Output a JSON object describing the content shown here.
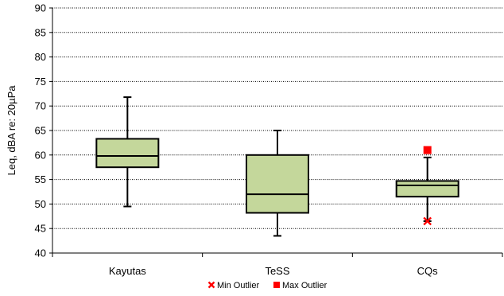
{
  "chart_data": {
    "type": "box",
    "ylabel": "Leq, dBA re: 20µPa",
    "ylim": [
      40,
      90
    ],
    "yticks": [
      40,
      45,
      50,
      55,
      60,
      65,
      70,
      75,
      80,
      85,
      90
    ],
    "grid": "horizontal dotted",
    "categories": [
      "Kayutas",
      "TeSS",
      "CQs"
    ],
    "boxes": [
      {
        "category": "Kayutas",
        "min": 49.5,
        "q1": 57.5,
        "median": 59.8,
        "q3": 63.3,
        "max": 71.8
      },
      {
        "category": "TeSS",
        "min": 43.5,
        "q1": 48.2,
        "median": 52.0,
        "q3": 60.0,
        "max": 65.0
      },
      {
        "category": "CQs",
        "min": 46.5,
        "q1": 51.5,
        "median": 53.8,
        "q3": 54.7,
        "max": 59.5
      }
    ],
    "outliers": [
      {
        "category": "CQs",
        "type": "min",
        "value": 46.5
      },
      {
        "category": "CQs",
        "type": "max",
        "value": 61.0
      }
    ],
    "legend": {
      "position": "bottom",
      "items": [
        {
          "label": "Min Outlier",
          "marker": "x",
          "color": "#ff0000"
        },
        {
          "label": "Max Outlier",
          "marker": "square",
          "color": "#ff0000"
        }
      ]
    },
    "colors": {
      "box_fill": "#c4d79b",
      "stroke": "#000000",
      "outlier": "#ff0000"
    }
  }
}
